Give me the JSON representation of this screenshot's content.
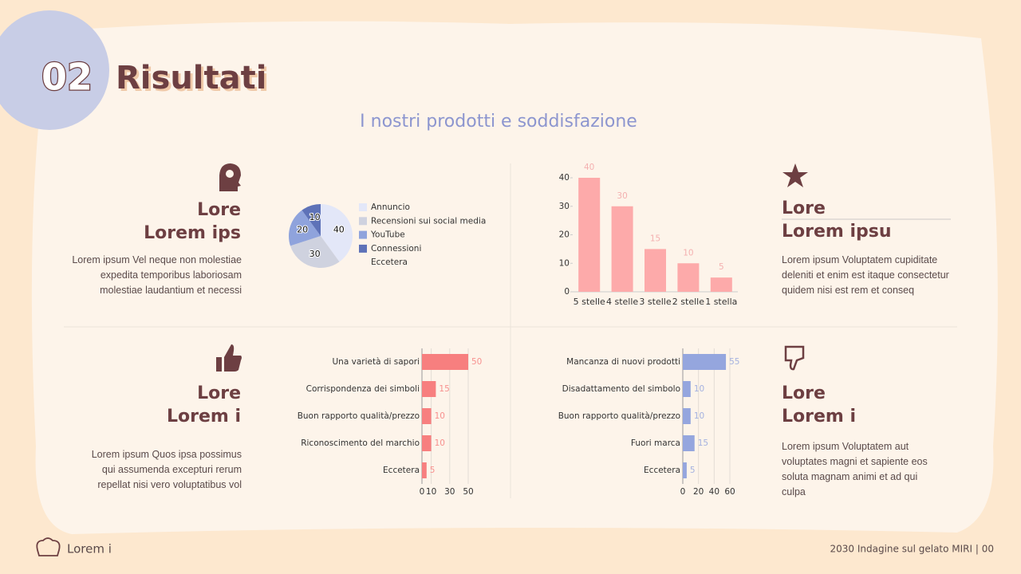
{
  "header": {
    "number": "02",
    "title": "Risultati",
    "subtitle": "I nostri prodotti e soddisfazione"
  },
  "blocks": [
    {
      "title": [
        "Lore",
        "Lorem ips"
      ],
      "body": "Lorem ipsum Vel neque non molestiae expedita temporibus laboriosam molestiae laudantium et necessi"
    },
    {
      "title": [
        "Lore",
        "Lorem ipsu"
      ],
      "body": "Lorem ipsum Voluptatem cupiditate deleniti et enim est itaque consectetur quidem nisi est rem et conseq"
    },
    {
      "title": [
        "Lore",
        "Lorem i"
      ],
      "body": "Lorem ipsum Quos ipsa possimus qui assumenda excepturi rerum repellat nisi vero voluptatibus vol"
    },
    {
      "title": [
        "Lore",
        "Lorem i"
      ],
      "body": "Lorem ipsum Voluptatem aut voluptates magni et sapiente eos soluta magnam animi et ad qui culpa"
    }
  ],
  "footer": {
    "left": "Lorem i",
    "right": "2030 Indagine sul gelato MIRI | 00"
  },
  "chart_data": [
    {
      "type": "pie",
      "categories": [
        "Annuncio",
        "Recensioni sui social media",
        "YouTube",
        "Connessioni",
        "Eccetera"
      ],
      "values": [
        40,
        30,
        20,
        10,
        0
      ],
      "colors": [
        "#e3e7f8",
        "#cfd2df",
        "#8fa3dc",
        "#5e72b8",
        "#fdf4ea"
      ],
      "legend": "right"
    },
    {
      "type": "bar",
      "orientation": "vertical",
      "categories": [
        "5 stelle",
        "4 stelle",
        "3 stelle",
        "2 stelle",
        "1 stella"
      ],
      "values": [
        40,
        30,
        15,
        10,
        5
      ],
      "color": "#fdaaaa",
      "ylim": [
        0,
        40
      ],
      "yticks": [
        0,
        10,
        20,
        30,
        40
      ],
      "grid": false
    },
    {
      "type": "bar",
      "orientation": "horizontal",
      "categories": [
        "Una varietà di sapori",
        "Corrispondenza dei simboli",
        "Buon rapporto qualità/prezzo",
        "Riconoscimento del marchio",
        "Eccetera"
      ],
      "values": [
        50,
        15,
        10,
        10,
        5
      ],
      "color": "#f77f7f",
      "xlim": [
        0,
        50
      ],
      "xticks": [
        0,
        10,
        30,
        50
      ],
      "grid": true
    },
    {
      "type": "bar",
      "orientation": "horizontal",
      "categories": [
        "Mancanza di nuovi prodotti",
        "Disadattamento del simbolo",
        "Buon rapporto qualità/prezzo",
        "Fuori marca",
        "Eccetera"
      ],
      "values": [
        55,
        10,
        10,
        15,
        5
      ],
      "color": "#95a6de",
      "xlim": [
        0,
        60
      ],
      "xticks": [
        0,
        20,
        40,
        60
      ],
      "grid": true
    }
  ]
}
